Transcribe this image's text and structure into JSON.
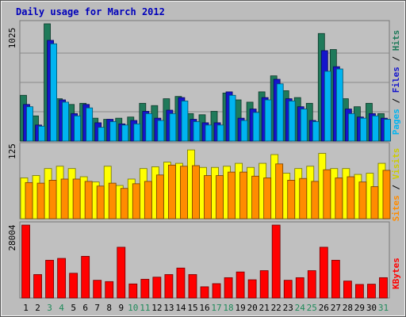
{
  "chart_data": [
    {
      "type": "bar",
      "title": "Daily usage for March 2012",
      "categories": [
        "1",
        "2",
        "3",
        "4",
        "5",
        "6",
        "7",
        "8",
        "9",
        "10",
        "11",
        "12",
        "13",
        "14",
        "15",
        "16",
        "17",
        "18",
        "19",
        "20",
        "21",
        "22",
        "23",
        "24",
        "25",
        "26",
        "27",
        "28",
        "29",
        "30",
        "31"
      ],
      "weekend_days": [
        3,
        4,
        10,
        11,
        17,
        18,
        24,
        25,
        31
      ],
      "max_label": "1025",
      "ylim": [
        0,
        1025
      ],
      "series": [
        {
          "name": "Hits",
          "color": "#1f7a5a",
          "values": [
            400,
            220,
            1025,
            370,
            320,
            330,
            200,
            190,
            200,
            210,
            330,
            310,
            370,
            390,
            240,
            230,
            260,
            420,
            360,
            340,
            430,
            570,
            440,
            380,
            330,
            940,
            800,
            370,
            300,
            330,
            240
          ]
        },
        {
          "name": "Files",
          "color": "#1515cc",
          "values": [
            320,
            140,
            880,
            360,
            240,
            320,
            160,
            190,
            150,
            180,
            260,
            200,
            270,
            380,
            190,
            160,
            160,
            430,
            200,
            280,
            380,
            540,
            370,
            300,
            180,
            790,
            650,
            280,
            210,
            240,
            200
          ]
        },
        {
          "name": "Pages",
          "color": "#00b4f0",
          "values": [
            300,
            130,
            850,
            340,
            220,
            290,
            120,
            170,
            140,
            150,
            240,
            180,
            240,
            350,
            170,
            140,
            140,
            400,
            180,
            250,
            360,
            500,
            350,
            280,
            170,
            610,
            630,
            240,
            200,
            220,
            190
          ]
        }
      ]
    },
    {
      "type": "bar",
      "max_label": "125",
      "ylim": [
        0,
        125
      ],
      "series": [
        {
          "name": "Visits",
          "color": "#ffff00",
          "values": [
            70,
            74,
            86,
            90,
            86,
            72,
            63,
            90,
            57,
            68,
            86,
            89,
            97,
            95,
            118,
            88,
            88,
            90,
            95,
            88,
            95,
            110,
            78,
            86,
            90,
            112,
            86,
            86,
            76,
            78,
            95
          ]
        },
        {
          "name": "Sites",
          "color": "#ff8c00",
          "values": [
            62,
            61,
            66,
            68,
            68,
            64,
            56,
            61,
            52,
            60,
            64,
            75,
            92,
            90,
            91,
            74,
            74,
            80,
            80,
            73,
            70,
            94,
            66,
            69,
            64,
            84,
            70,
            72,
            63,
            55,
            83
          ]
        }
      ]
    },
    {
      "type": "bar",
      "max_label": "28004",
      "ylim": [
        0,
        28004
      ],
      "series": [
        {
          "name": "KBytes",
          "color": "#ff0000",
          "values": [
            28004,
            9000,
            14500,
            15200,
            9500,
            16000,
            6800,
            6300,
            19500,
            5400,
            7200,
            8000,
            9000,
            11500,
            9000,
            4300,
            5500,
            7800,
            10000,
            7000,
            10500,
            28004,
            6800,
            7800,
            10500,
            19500,
            14500,
            6500,
            5200,
            5300,
            7800
          ]
        }
      ]
    }
  ]
}
